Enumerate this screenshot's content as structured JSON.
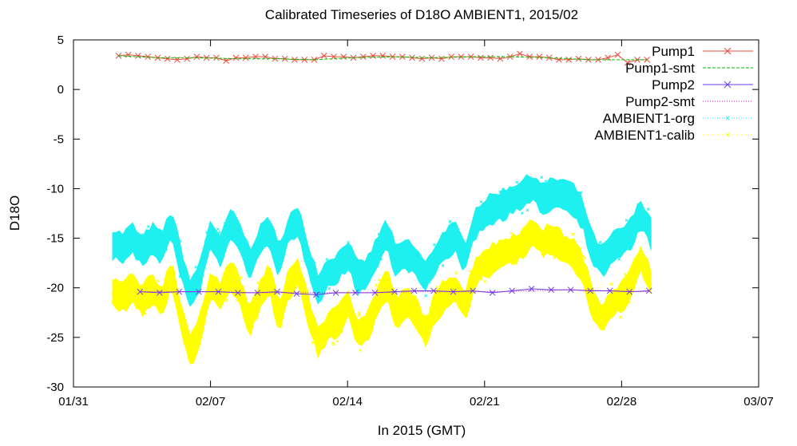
{
  "chart_data": {
    "type": "scatter",
    "title": "Calibrated Timeseries of D18O AMBIENT1, 2015/02",
    "xlabel": "In 2015 (GMT)",
    "ylabel": "D18O",
    "x_unit": "day of 2015",
    "xlim": [
      31,
      66
    ],
    "ylim": [
      -30,
      5
    ],
    "x_ticks": [
      {
        "value": 31,
        "label": "01/31"
      },
      {
        "value": 38,
        "label": "02/07"
      },
      {
        "value": 45,
        "label": "02/14"
      },
      {
        "value": 52,
        "label": "02/21"
      },
      {
        "value": 59,
        "label": "02/28"
      },
      {
        "value": 66,
        "label": "03/07"
      }
    ],
    "y_ticks": [
      {
        "value": 5,
        "label": "5"
      },
      {
        "value": 0,
        "label": "0"
      },
      {
        "value": -5,
        "label": "-5"
      },
      {
        "value": -10,
        "label": "-10"
      },
      {
        "value": -15,
        "label": "-15"
      },
      {
        "value": -20,
        "label": "-20"
      },
      {
        "value": -25,
        "label": "-25"
      },
      {
        "value": -30,
        "label": "-30"
      }
    ],
    "grid": false,
    "legend_position": "top-right",
    "series": [
      {
        "name": "Pump1",
        "color": "#e8503c",
        "marker": "x",
        "style": "markers-line",
        "x": [
          33.3,
          33.8,
          34.3,
          34.8,
          35.3,
          35.8,
          36.3,
          36.8,
          37.3,
          37.8,
          38.3,
          38.8,
          39.3,
          39.8,
          40.3,
          40.8,
          41.3,
          41.8,
          42.3,
          42.8,
          43.3,
          43.8,
          44.3,
          44.8,
          45.3,
          45.8,
          46.3,
          46.8,
          47.3,
          47.8,
          48.3,
          48.8,
          49.3,
          49.8,
          50.3,
          50.8,
          51.3,
          51.8,
          52.3,
          52.8,
          53.3,
          53.8,
          54.3,
          54.8,
          55.3,
          55.8,
          56.3,
          56.8,
          57.3,
          57.8,
          58.3,
          58.8,
          59.3,
          59.8,
          60.3
        ],
        "y": [
          3.4,
          3.5,
          3.4,
          3.3,
          3.2,
          3.1,
          3.0,
          3.1,
          3.3,
          3.2,
          3.2,
          2.9,
          3.2,
          3.2,
          3.3,
          3.3,
          3.1,
          3.1,
          3.0,
          3.0,
          3.0,
          3.4,
          3.3,
          3.3,
          3.2,
          3.3,
          3.4,
          3.4,
          3.3,
          3.3,
          3.2,
          3.1,
          3.2,
          3.1,
          3.3,
          3.3,
          3.3,
          3.2,
          3.2,
          3.1,
          3.3,
          3.6,
          3.3,
          3.3,
          3.2,
          3.0,
          3.0,
          3.1,
          3.0,
          3.0,
          3.2,
          3.5,
          2.7,
          3.0,
          3.0
        ]
      },
      {
        "name": "Pump1-smt",
        "color": "#00c000",
        "style": "dashed-line",
        "x": [
          33.3,
          35.3,
          37.3,
          39.3,
          41.3,
          43.3,
          45.3,
          47.3,
          49.3,
          51.3,
          53.3,
          55.3,
          57.3,
          59.3,
          60.3
        ],
        "y": [
          3.4,
          3.2,
          3.2,
          3.1,
          3.1,
          3.0,
          3.2,
          3.3,
          3.2,
          3.3,
          3.3,
          3.2,
          3.0,
          3.0,
          3.0
        ]
      },
      {
        "name": "Pump2",
        "color": "#6a3de8",
        "marker": "x",
        "style": "markers-line",
        "x": [
          34.4,
          35.4,
          36.4,
          37.4,
          38.4,
          39.4,
          40.4,
          41.4,
          42.4,
          43.4,
          44.4,
          45.4,
          46.4,
          47.4,
          48.4,
          49.4,
          50.4,
          51.4,
          52.4,
          53.4,
          54.4,
          55.4,
          56.4,
          57.4,
          58.4,
          59.4,
          60.4
        ],
        "y": [
          -20.4,
          -20.5,
          -20.4,
          -20.4,
          -20.4,
          -20.5,
          -20.5,
          -20.4,
          -20.6,
          -20.7,
          -20.5,
          -20.5,
          -20.5,
          -20.4,
          -20.3,
          -20.3,
          -20.4,
          -20.3,
          -20.5,
          -20.3,
          -20.1,
          -20.2,
          -20.2,
          -20.3,
          -20.3,
          -20.4,
          -20.3
        ]
      },
      {
        "name": "Pump2-smt",
        "color": "#d000d0",
        "style": "dotted-line",
        "x": [
          34.4,
          36.4,
          38.4,
          40.4,
          42.4,
          44.4,
          46.4,
          48.4,
          50.4,
          52.4,
          54.4,
          56.4,
          58.4,
          60.4
        ],
        "y": [
          -20.4,
          -20.4,
          -20.4,
          -20.5,
          -20.5,
          -20.5,
          -20.5,
          -20.4,
          -20.4,
          -20.4,
          -20.3,
          -20.2,
          -20.3,
          -20.4
        ]
      },
      {
        "name": "AMBIENT1-org",
        "color": "#1ef0f0",
        "marker": "dense",
        "style": "band",
        "x": [
          33.0,
          33.5,
          34.0,
          34.5,
          35.0,
          35.5,
          36.0,
          36.5,
          37.0,
          37.5,
          38.0,
          38.5,
          39.0,
          39.5,
          40.0,
          40.5,
          41.0,
          41.5,
          42.0,
          42.5,
          43.0,
          43.5,
          44.0,
          44.5,
          45.0,
          45.5,
          46.0,
          46.5,
          47.0,
          47.5,
          48.0,
          48.5,
          49.0,
          49.5,
          50.0,
          50.5,
          51.0,
          51.5,
          52.0,
          52.5,
          53.0,
          53.5,
          54.0,
          54.5,
          55.0,
          55.5,
          56.0,
          56.5,
          57.0,
          57.5,
          58.0,
          58.5,
          59.0,
          59.5,
          60.0,
          60.5
        ],
        "y": [
          -15.5,
          -16.0,
          -15.0,
          -16.5,
          -15.0,
          -16.0,
          -13.5,
          -17.5,
          -21.0,
          -18.5,
          -14.5,
          -16.5,
          -13.5,
          -15.0,
          -17.5,
          -15.5,
          -14.0,
          -17.5,
          -14.0,
          -13.5,
          -17.0,
          -20.0,
          -18.5,
          -18.0,
          -16.5,
          -19.0,
          -18.5,
          -16.5,
          -14.5,
          -17.5,
          -16.5,
          -17.5,
          -19.0,
          -17.0,
          -15.5,
          -15.0,
          -17.0,
          -13.5,
          -12.5,
          -12.0,
          -11.5,
          -11.0,
          -10.5,
          -10.0,
          -11.0,
          -10.5,
          -10.5,
          -11.0,
          -12.5,
          -16.0,
          -17.5,
          -16.0,
          -15.5,
          -14.5,
          -12.5,
          -14.5
        ]
      },
      {
        "name": "AMBIENT1-calib",
        "color": "#ffff00",
        "marker": "dense",
        "style": "band",
        "x": [
          33.0,
          33.5,
          34.0,
          34.5,
          35.0,
          35.5,
          36.0,
          36.5,
          37.0,
          37.5,
          38.0,
          38.5,
          39.0,
          39.5,
          40.0,
          40.5,
          41.0,
          41.5,
          42.0,
          42.5,
          43.0,
          43.5,
          44.0,
          44.5,
          45.0,
          45.5,
          46.0,
          46.5,
          47.0,
          47.5,
          48.0,
          48.5,
          49.0,
          49.5,
          50.0,
          50.5,
          51.0,
          51.5,
          52.0,
          52.5,
          53.0,
          53.5,
          54.0,
          54.5,
          55.0,
          55.5,
          56.0,
          56.5,
          57.0,
          57.5,
          58.0,
          58.5,
          59.0,
          59.5,
          60.0,
          60.5
        ],
        "y": [
          -20.5,
          -21.0,
          -20.0,
          -21.5,
          -20.0,
          -21.5,
          -18.5,
          -23.0,
          -26.5,
          -24.0,
          -19.5,
          -21.0,
          -18.5,
          -20.5,
          -23.5,
          -21.0,
          -19.0,
          -23.0,
          -19.5,
          -18.5,
          -22.5,
          -25.5,
          -24.0,
          -23.5,
          -21.5,
          -24.5,
          -24.0,
          -21.5,
          -19.5,
          -22.5,
          -21.5,
          -22.5,
          -24.5,
          -22.0,
          -20.5,
          -20.0,
          -22.0,
          -18.5,
          -17.5,
          -17.0,
          -16.5,
          -16.0,
          -15.5,
          -14.5,
          -15.5,
          -15.0,
          -16.0,
          -16.5,
          -18.0,
          -21.5,
          -23.0,
          -21.5,
          -21.0,
          -19.5,
          -17.0,
          -19.5
        ]
      }
    ]
  }
}
